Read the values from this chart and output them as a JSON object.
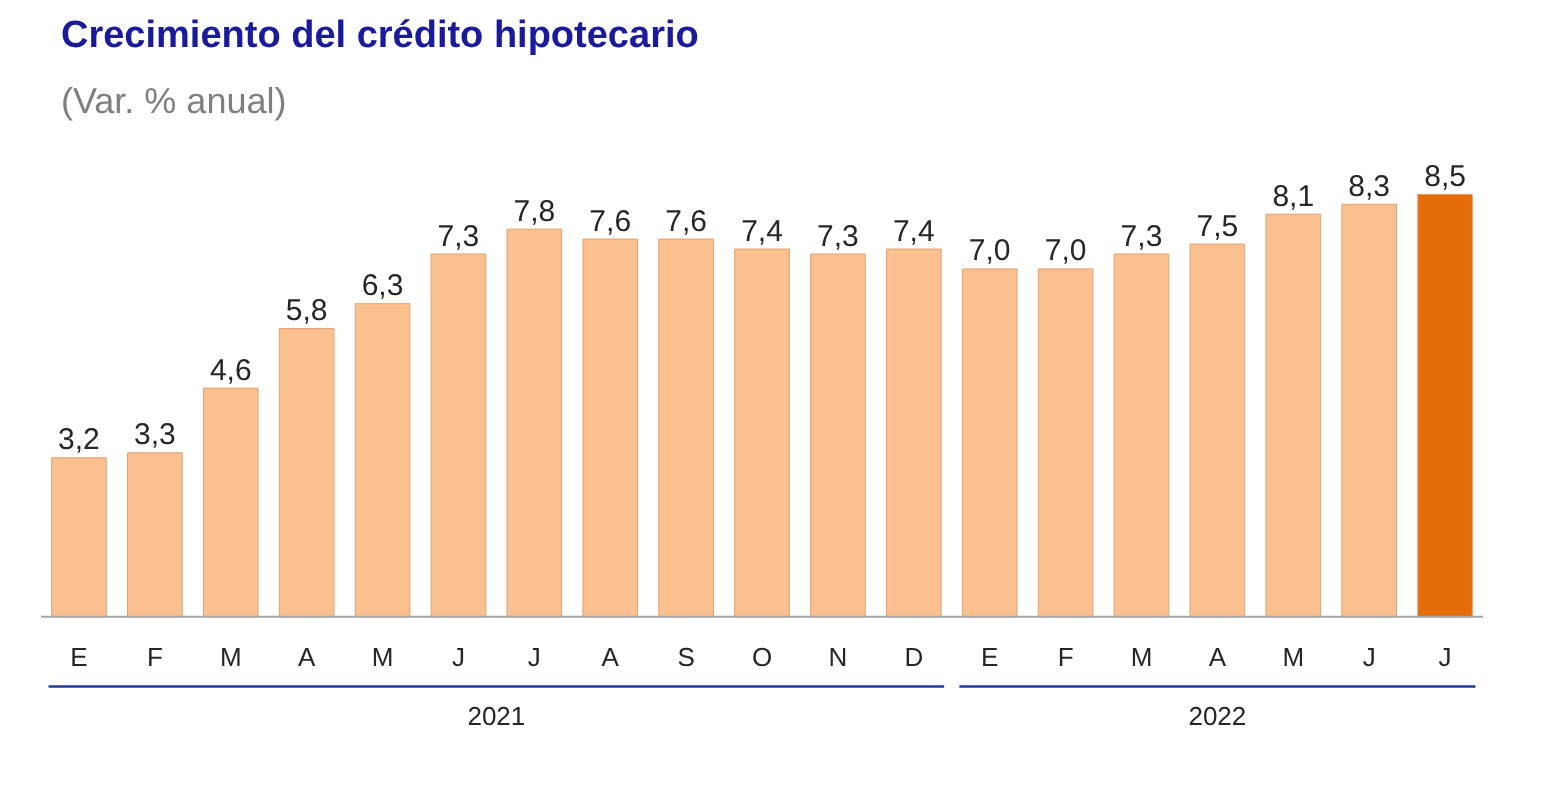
{
  "chart_data": {
    "type": "bar",
    "title": "Crecimiento del crédito hipotecario",
    "subtitle": "(Var. % anual)",
    "categories": [
      "E",
      "F",
      "M",
      "A",
      "M",
      "J",
      "J",
      "A",
      "S",
      "O",
      "N",
      "D",
      "E",
      "F",
      "M",
      "A",
      "M",
      "J",
      "J"
    ],
    "values": [
      3.2,
      3.3,
      4.6,
      5.8,
      6.3,
      7.3,
      7.8,
      7.6,
      7.6,
      7.4,
      7.3,
      7.4,
      7.0,
      7.0,
      7.3,
      7.5,
      8.1,
      8.3,
      8.5
    ],
    "value_labels": [
      "3,2",
      "3,3",
      "4,6",
      "5,8",
      "6,3",
      "7,3",
      "7,8",
      "7,6",
      "7,6",
      "7,4",
      "7,3",
      "7,4",
      "7,0",
      "7,0",
      "7,3",
      "7,5",
      "8,1",
      "8,3",
      "8,5"
    ],
    "colors": [
      "#fac090",
      "#fac090",
      "#fac090",
      "#fac090",
      "#fac090",
      "#fac090",
      "#fac090",
      "#fac090",
      "#fac090",
      "#fac090",
      "#fac090",
      "#fac090",
      "#fac090",
      "#fac090",
      "#fac090",
      "#fac090",
      "#fac090",
      "#fac090",
      "#e46c0a"
    ],
    "annotations": [
      "2021",
      "2022"
    ]
  }
}
